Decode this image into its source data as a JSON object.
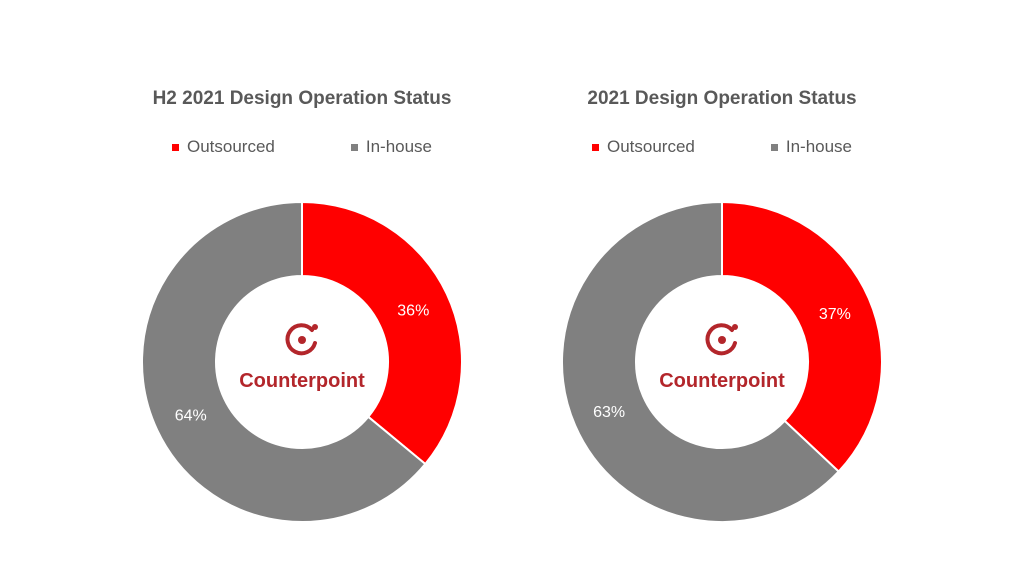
{
  "chart_data": [
    {
      "type": "pie",
      "title": "H2 2021 Design Operation Status",
      "categories": [
        "Outsourced",
        "In-house"
      ],
      "values": [
        36,
        64
      ],
      "value_labels": [
        "36%",
        "64%"
      ],
      "colors": [
        "#ff0000",
        "#808080"
      ],
      "legend": "top",
      "donut": true
    },
    {
      "type": "pie",
      "title": "2021 Design Operation Status",
      "categories": [
        "Outsourced",
        "In-house"
      ],
      "values": [
        37,
        63
      ],
      "value_labels": [
        "37%",
        "63%"
      ],
      "colors": [
        "#ff0000",
        "#808080"
      ],
      "legend": "top",
      "donut": true
    }
  ],
  "logo": {
    "text": "Counterpoint",
    "color": "#b3262b",
    "icon": "counterpoint-logo-icon"
  }
}
